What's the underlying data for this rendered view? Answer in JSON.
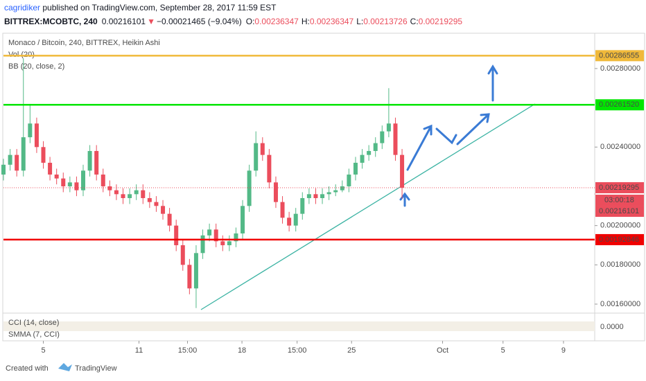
{
  "header": {
    "author": "cagridiker",
    "published": " published on TradingView.com, September 28, 2017 11:59 EST",
    "symbol": "BITTREX:MCOBTC, 240",
    "last": 0.00216101,
    "arrow": "▼",
    "change": "−0.00021465 (−9.04%)",
    "o_label": "O:",
    "open": 0.00236347,
    "h_label": "H:",
    "high": 0.00236347,
    "l_label": "L:",
    "low": 0.00213726,
    "c_label": "C:",
    "close": 0.00219295
  },
  "legend": {
    "main": "Monaco / Bitcoin, 240, BITTREX, Heikin Ashi",
    "vol": "Vol (20)",
    "bb": "BB (20, close, 2)",
    "cci": "CCI (14, close)",
    "smma": "SMMA (7, CCI)",
    "cci_tick": "0.0000",
    "countdown": "03:00:18"
  },
  "footer": {
    "created": "Created with",
    "brand": "TradingView"
  },
  "chart_data": {
    "type": "candlestick",
    "up_color": "#53b987",
    "down_color": "#eb4d5c",
    "xlim": [
      0,
      89
    ],
    "ylim": [
      0.0015612,
      0.0029727
    ],
    "xticks": [
      {
        "value": 6,
        "label": "5"
      },
      {
        "value": 20.4,
        "label": "11"
      },
      {
        "value": 27.7,
        "label": "15:00"
      },
      {
        "value": 35.9,
        "label": "18"
      },
      {
        "value": 44.2,
        "label": "15:00"
      },
      {
        "value": 52.4,
        "label": "25"
      },
      {
        "value": 66.1,
        "label": "Oct"
      },
      {
        "value": 75.2,
        "label": "5"
      },
      {
        "value": 84.3,
        "label": "9"
      }
    ],
    "yticks": [
      {
        "value": 0.0016,
        "label": "0.00160000"
      },
      {
        "value": 0.0018,
        "label": "0.00180000"
      },
      {
        "value": 0.002,
        "label": "0.00200000"
      },
      {
        "value": 0.0024,
        "label": "0.00240000"
      },
      {
        "value": 0.0028,
        "label": "0.00280000"
      }
    ],
    "open": [
      0.00226,
      0.00231,
      0.00236,
      0.00228,
      0.00245,
      0.00252,
      0.0024,
      0.00232,
      0.00226,
      0.00224,
      0.0022,
      0.00222,
      0.00218,
      0.00228,
      0.00238,
      0.00226,
      0.0022,
      0.00218,
      0.00216,
      0.00214,
      0.00216,
      0.00218,
      0.00214,
      0.00212,
      0.0021,
      0.00206,
      0.002,
      0.0019,
      0.0018,
      0.00168,
      0.00186,
      0.00195,
      0.00198,
      0.00192,
      0.0019,
      0.00192,
      0.00196,
      0.0021,
      0.00228,
      0.00242,
      0.00236,
      0.00222,
      0.00212,
      0.00204,
      0.002,
      0.00206,
      0.00214,
      0.00216,
      0.00214,
      0.00216,
      0.00217,
      0.00218,
      0.0022,
      0.00226,
      0.00232,
      0.00236,
      0.00238,
      0.00242,
      0.00248,
      0.00252,
      0.00236
    ],
    "high": [
      0.00234,
      0.00239,
      0.00239,
      0.00285,
      0.00262,
      0.00255,
      0.00243,
      0.00235,
      0.00229,
      0.00227,
      0.00225,
      0.00225,
      0.00231,
      0.00241,
      0.00241,
      0.00229,
      0.00223,
      0.00221,
      0.00219,
      0.00219,
      0.00221,
      0.00221,
      0.00217,
      0.00215,
      0.00213,
      0.00209,
      0.00203,
      0.00193,
      0.00183,
      0.0019,
      0.00198,
      0.00201,
      0.00201,
      0.00195,
      0.00195,
      0.00199,
      0.00213,
      0.00231,
      0.00248,
      0.00245,
      0.00239,
      0.00225,
      0.00215,
      0.00207,
      0.00209,
      0.00217,
      0.00219,
      0.00219,
      0.00219,
      0.0022,
      0.00221,
      0.00223,
      0.00229,
      0.00235,
      0.00239,
      0.00241,
      0.00245,
      0.00251,
      0.0027,
      0.00255,
      0.00239
    ],
    "low": [
      0.00223,
      0.00228,
      0.00225,
      0.00225,
      0.00242,
      0.00237,
      0.00229,
      0.00223,
      0.00221,
      0.00217,
      0.00217,
      0.00215,
      0.00215,
      0.00225,
      0.00223,
      0.00217,
      0.00215,
      0.00213,
      0.00211,
      0.00211,
      0.00213,
      0.00211,
      0.00209,
      0.00207,
      0.00203,
      0.00197,
      0.00187,
      0.00177,
      0.00165,
      0.00158,
      0.00183,
      0.00192,
      0.00189,
      0.00187,
      0.00187,
      0.00189,
      0.00193,
      0.00207,
      0.00225,
      0.00233,
      0.00219,
      0.00209,
      0.00201,
      0.00197,
      0.00197,
      0.00203,
      0.00211,
      0.00211,
      0.00211,
      0.00213,
      0.00215,
      0.00217,
      0.00217,
      0.00223,
      0.00229,
      0.00233,
      0.00235,
      0.00239,
      0.00245,
      0.00233,
      0.00213726
    ],
    "close": [
      0.00231,
      0.00236,
      0.00228,
      0.00245,
      0.00252,
      0.0024,
      0.00232,
      0.00226,
      0.00224,
      0.0022,
      0.00222,
      0.00218,
      0.00228,
      0.00238,
      0.00226,
      0.0022,
      0.00218,
      0.00216,
      0.00214,
      0.00216,
      0.00218,
      0.00214,
      0.00212,
      0.0021,
      0.00206,
      0.002,
      0.0019,
      0.0018,
      0.00168,
      0.00186,
      0.00195,
      0.00198,
      0.00192,
      0.0019,
      0.00192,
      0.00196,
      0.0021,
      0.00228,
      0.00242,
      0.00236,
      0.00222,
      0.00212,
      0.00204,
      0.002,
      0.00206,
      0.00214,
      0.00216,
      0.00214,
      0.00216,
      0.00217,
      0.00218,
      0.0022,
      0.00226,
      0.00232,
      0.00236,
      0.00238,
      0.00242,
      0.00248,
      0.00252,
      0.00236,
      0.00219295
    ],
    "levels": [
      {
        "price": 0.00286555,
        "color": "#f0b93a",
        "text_color": "#131722"
      },
      {
        "price": 0.0026152,
        "label": "0.00261520",
        "color": "#00e600",
        "text_color": "#131722"
      },
      {
        "price": 0.00192846,
        "color": "#f00000",
        "text_color": "#ffffff"
      }
    ],
    "current": {
      "price": 0.00219295,
      "color": "#eb4d5c"
    },
    "last_price": {
      "price": 0.00216101,
      "color": "#eb4d5c"
    }
  }
}
